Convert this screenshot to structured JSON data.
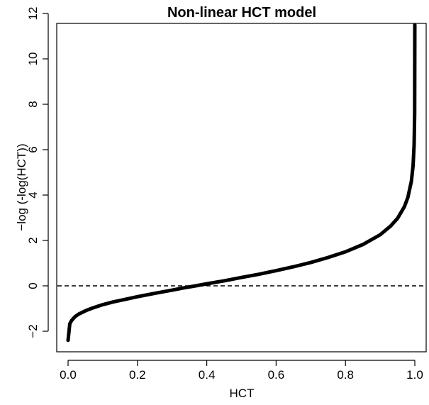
{
  "chart_data": {
    "type": "line",
    "title": "Non-linear HCT model",
    "xlabel": "HCT",
    "ylabel": "−log (-log(HCT))",
    "xlim": [
      0.0,
      1.0
    ],
    "ylim": [
      -2.5,
      11.5
    ],
    "x_ticks": [
      0.0,
      0.2,
      0.4,
      0.6,
      0.8,
      1.0
    ],
    "x_tick_labels": [
      "0.0",
      "0.2",
      "0.4",
      "0.6",
      "0.8",
      "1.0"
    ],
    "y_ticks": [
      -2,
      0,
      2,
      4,
      6,
      8,
      10,
      12
    ],
    "y_tick_labels": [
      "−2",
      "0",
      "2",
      "4",
      "6",
      "8",
      "10",
      "12"
    ],
    "reference_line": {
      "y": 0,
      "style": "dashed"
    },
    "grid": false,
    "legend": "none",
    "series": [
      {
        "x": [
          0.0,
          0.005,
          0.01,
          0.02,
          0.03,
          0.05,
          0.07,
          0.1,
          0.13,
          0.16,
          0.2,
          0.25,
          0.3,
          0.33,
          0.368,
          0.4,
          0.45,
          0.5,
          0.55,
          0.6,
          0.65,
          0.7,
          0.75,
          0.8,
          0.85,
          0.9,
          0.93,
          0.95,
          0.97,
          0.98,
          0.99,
          0.995,
          0.998,
          0.9995,
          0.99999
        ],
        "y": [
          -2.4,
          -1.67,
          -1.53,
          -1.36,
          -1.25,
          -1.1,
          -0.98,
          -0.83,
          -0.71,
          -0.61,
          -0.48,
          -0.33,
          -0.19,
          -0.1,
          0.0,
          0.09,
          0.22,
          0.37,
          0.51,
          0.67,
          0.84,
          1.03,
          1.25,
          1.5,
          1.82,
          2.25,
          2.63,
          2.97,
          3.49,
          3.9,
          4.6,
          5.3,
          6.21,
          7.6,
          11.5
        ]
      }
    ]
  }
}
